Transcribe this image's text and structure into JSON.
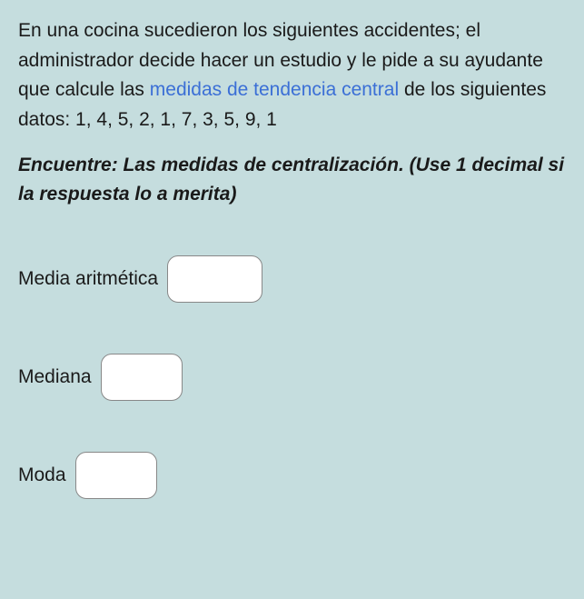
{
  "intro": {
    "part1": "En una cocina sucedieron los siguientes accidentes; el administrador decide hacer un estudio y le pide a su ayudante que calcule las ",
    "link": "medidas de tendencia central",
    "part2": " de los siguientes datos:  1, 4, 5, 2, 1, 7, 3, 5, 9, 1"
  },
  "instruction": "Encuentre: Las medidas de centralización. (Use 1 decimal si la respuesta lo a merita)",
  "fields": {
    "mean": {
      "label": "Media aritmética",
      "value": ""
    },
    "median": {
      "label": "Mediana",
      "value": ""
    },
    "mode": {
      "label": "Moda",
      "value": ""
    }
  },
  "colors": {
    "background": "#c5ddde",
    "text": "#1a1a1a",
    "link": "#3b6fd6",
    "input_bg": "#ffffff",
    "input_border": "#888"
  }
}
